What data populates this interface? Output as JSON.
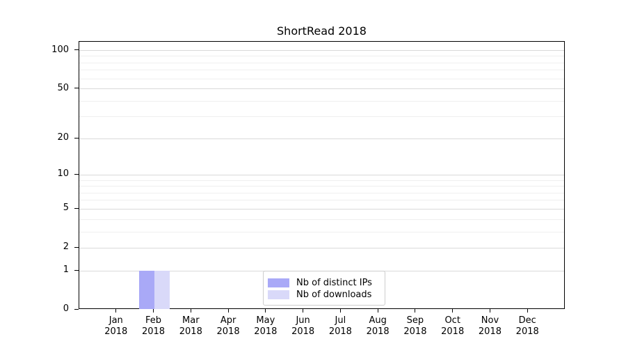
{
  "chart_data": {
    "type": "bar",
    "title": "ShortRead 2018",
    "year": "2018",
    "categories": [
      "Jan",
      "Feb",
      "Mar",
      "Apr",
      "May",
      "Jun",
      "Jul",
      "Aug",
      "Sep",
      "Oct",
      "Nov",
      "Dec"
    ],
    "series": [
      {
        "name": "Nb of distinct IPs",
        "color": "#a9a9f7",
        "values": [
          0,
          1,
          0,
          0,
          0,
          0,
          0,
          0,
          0,
          0,
          0,
          0
        ]
      },
      {
        "name": "Nb of downloads",
        "color": "#d9d9f9",
        "values": [
          0,
          1,
          0,
          0,
          0,
          0,
          0,
          0,
          0,
          0,
          0,
          0
        ]
      }
    ],
    "xlabel": "",
    "ylabel": "",
    "yscale": "log1p",
    "ylim": [
      0,
      117
    ],
    "yticks": [
      0,
      1,
      2,
      5,
      10,
      20,
      50,
      100
    ],
    "yticks_minor": [
      3,
      4,
      6,
      7,
      8,
      9,
      30,
      40,
      60,
      70,
      80,
      90
    ],
    "grid": "horizontal",
    "legend_position": "lower center",
    "style": {
      "grid_color_major": "#d9d9d9",
      "grid_color_minor": "#efefef",
      "axis_color": "#000000",
      "legend_border_color": "#cccccc"
    }
  }
}
